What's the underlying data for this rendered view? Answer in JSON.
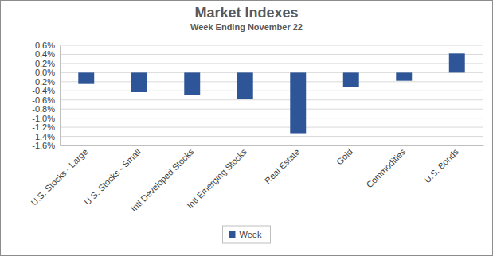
{
  "chart_data": {
    "type": "bar",
    "title": "Market Indexes",
    "subtitle": "Week Ending November 22",
    "categories": [
      "U.S. Stocks - Large",
      "U.S. Stocks - Small",
      "Intl Developed Stocks",
      "Intl Emerging Stocks",
      "Real Estate",
      "Gold",
      "Commodities",
      "U.S. Bonds"
    ],
    "series": [
      {
        "name": "Week",
        "color": "#2e5597",
        "values": [
          -0.25,
          -0.43,
          -0.49,
          -0.58,
          -1.33,
          -0.32,
          -0.18,
          0.42
        ]
      }
    ],
    "ylim": [
      -1.6,
      0.6
    ],
    "yticks": [
      {
        "value": 0.6,
        "label": "0.6%"
      },
      {
        "value": 0.4,
        "label": "0.4%"
      },
      {
        "value": 0.2,
        "label": "0.2%"
      },
      {
        "value": 0.0,
        "label": "0.0%"
      },
      {
        "value": -0.2,
        "label": "-0.2%"
      },
      {
        "value": -0.4,
        "label": "-0.4%"
      },
      {
        "value": -0.6,
        "label": "-0.6%"
      },
      {
        "value": -0.8,
        "label": "-0.8%"
      },
      {
        "value": -1.0,
        "label": "-1.0%"
      },
      {
        "value": -1.2,
        "label": "-1.2%"
      },
      {
        "value": -1.4,
        "label": "-1.4%"
      },
      {
        "value": -1.6,
        "label": "-1.6%"
      }
    ],
    "grid": true,
    "legend": "bottom"
  }
}
